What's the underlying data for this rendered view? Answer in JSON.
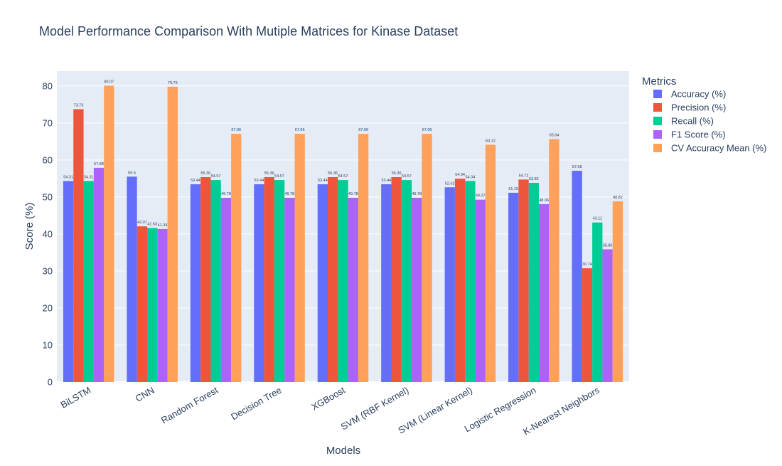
{
  "chart_data": {
    "type": "bar",
    "title": "Model Performance Comparison With Mutiple Matrices for Kinase Dataset",
    "xlabel": "Models",
    "ylabel": "Score (%)",
    "ylim": [
      0,
      84
    ],
    "yticks": [
      0,
      10,
      20,
      30,
      40,
      50,
      60,
      70,
      80
    ],
    "grid": true,
    "legend_title": "Metrics",
    "legend_position": "right",
    "categories": [
      "BiLSTM",
      "CNN",
      "Random Forest",
      "Decision Tree",
      "XGBoost",
      "SVM (RBF Kernel)",
      "SVM (Linear Kernel)",
      "Logistic Regression",
      "K-Nearest Neighbors"
    ],
    "series": [
      {
        "name": "Accuracy (%)",
        "color": "#636efa",
        "values": [
          54.31,
          55.5,
          53.44,
          53.44,
          53.44,
          53.44,
          52.62,
          51.15,
          57.08
        ],
        "labels": [
          "54.31",
          "55.5",
          "53.44",
          "53.44",
          "53.44",
          "53.44",
          "52.62",
          "51.15",
          "57.08"
        ]
      },
      {
        "name": "Precision (%)",
        "color": "#ef553b",
        "values": [
          73.73,
          42.07,
          55.36,
          55.36,
          55.36,
          55.36,
          54.94,
          54.72,
          30.74
        ],
        "labels": [
          "73.73",
          "42.07",
          "55.36",
          "55.36",
          "55.36",
          "55.36",
          "54.94",
          "54.72",
          "30.74"
        ]
      },
      {
        "name": "Recall (%)",
        "color": "#00cc96",
        "values": [
          54.31,
          41.63,
          54.57,
          54.57,
          54.57,
          54.57,
          54.34,
          53.82,
          43.11
        ],
        "labels": [
          "54.31",
          "41.63",
          "54.57",
          "54.57",
          "54.57",
          "54.57",
          "54.34",
          "53.82",
          "43.11"
        ]
      },
      {
        "name": "F1 Score (%)",
        "color": "#ab63fa",
        "values": [
          57.88,
          41.34,
          49.78,
          49.78,
          49.78,
          49.78,
          49.27,
          48.06,
          35.86
        ],
        "labels": [
          "57.88",
          "41.34",
          "49.78",
          "49.78",
          "49.78",
          "49.78",
          "49.27",
          "48.06",
          "35.86"
        ]
      },
      {
        "name": "CV Accuracy Mean (%)",
        "color": "#ffa15a",
        "values": [
          80.07,
          79.79,
          67.06,
          67.06,
          67.06,
          67.06,
          64.12,
          65.64,
          48.82
        ],
        "labels": [
          "80.07",
          "79.79",
          "67.06",
          "67.06",
          "67.06",
          "67.06",
          "64.12",
          "65.64",
          "48.82"
        ]
      }
    ]
  }
}
